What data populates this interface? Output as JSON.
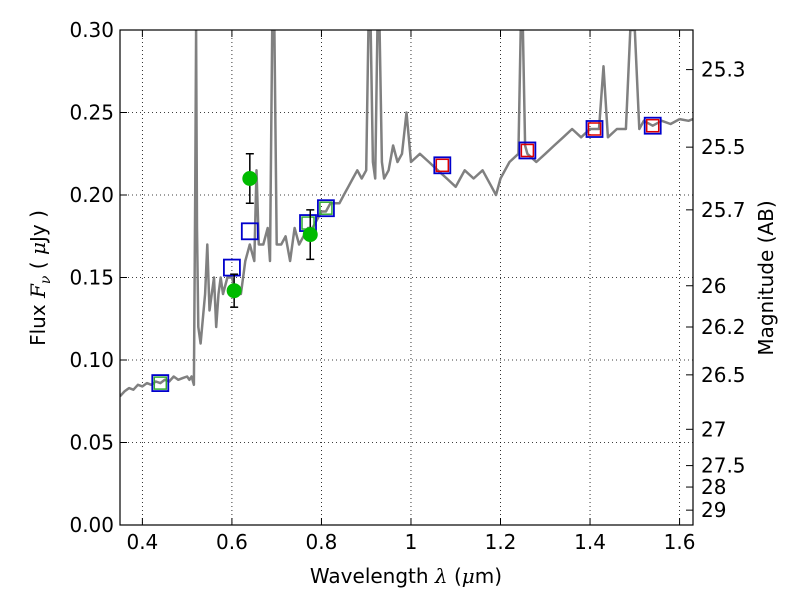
{
  "chart_data": {
    "type": "scatter",
    "xlabel": "Wavelength  λ (μm)",
    "ylabel": "Flux  F_ν  ( μJy )",
    "y2label": "Magnitude (AB)",
    "xlim": [
      0.35,
      1.63
    ],
    "ylim": [
      0.0,
      0.3
    ],
    "grid": "dotted",
    "x_ticks": [
      0.4,
      0.6,
      0.8,
      1.0,
      1.2,
      1.4,
      1.6
    ],
    "x_tick_labels": [
      "0.4",
      "0.6",
      "0.8",
      "1",
      "1.2",
      "1.4",
      "1.6"
    ],
    "y_ticks": [
      0.0,
      0.05,
      0.1,
      0.15,
      0.2,
      0.25,
      0.3
    ],
    "y_tick_labels": [
      "0.00",
      "0.05",
      "0.10",
      "0.15",
      "0.20",
      "0.25",
      "0.30"
    ],
    "mag_ticks": [
      {
        "label": "25.3",
        "flux": 0.276
      },
      {
        "label": "25.5",
        "flux": 0.229
      },
      {
        "label": "25.7",
        "flux": 0.191
      },
      {
        "label": "26",
        "flux": 0.145
      },
      {
        "label": "26.2",
        "flux": 0.12
      },
      {
        "label": "26.5",
        "flux": 0.091
      },
      {
        "label": "27",
        "flux": 0.058
      },
      {
        "label": "27.5",
        "flux": 0.036
      },
      {
        "label": "28",
        "flux": 0.023
      },
      {
        "label": "29",
        "flux": 0.009
      }
    ],
    "colors": {
      "model": "#808080",
      "blue_squares": "#0000cc",
      "green_squares": "#33aa33",
      "red_squares": "#dd0000",
      "points": "#00bb00",
      "errorbars": "#000000"
    },
    "series": [
      {
        "kind": "line",
        "points": [
          [
            0.35,
            0.078
          ],
          [
            0.36,
            0.081
          ],
          [
            0.37,
            0.083
          ],
          [
            0.38,
            0.082
          ],
          [
            0.39,
            0.085
          ],
          [
            0.4,
            0.084
          ],
          [
            0.41,
            0.086
          ],
          [
            0.42,
            0.085
          ],
          [
            0.43,
            0.087
          ],
          [
            0.44,
            0.086
          ],
          [
            0.45,
            0.088
          ],
          [
            0.46,
            0.087
          ],
          [
            0.47,
            0.09
          ],
          [
            0.48,
            0.088
          ],
          [
            0.49,
            0.089
          ],
          [
            0.5,
            0.09
          ],
          [
            0.505,
            0.088
          ],
          [
            0.51,
            0.09
          ],
          [
            0.515,
            0.085
          ],
          [
            0.518,
            0.2
          ],
          [
            0.52,
            0.3
          ],
          [
            0.522,
            0.18
          ],
          [
            0.525,
            0.12
          ],
          [
            0.53,
            0.11
          ],
          [
            0.54,
            0.14
          ],
          [
            0.545,
            0.17
          ],
          [
            0.55,
            0.13
          ],
          [
            0.56,
            0.15
          ],
          [
            0.565,
            0.12
          ],
          [
            0.57,
            0.14
          ],
          [
            0.575,
            0.15
          ],
          [
            0.58,
            0.14
          ],
          [
            0.59,
            0.15
          ],
          [
            0.6,
            0.15
          ],
          [
            0.61,
            0.14
          ],
          [
            0.62,
            0.14
          ],
          [
            0.63,
            0.16
          ],
          [
            0.64,
            0.17
          ],
          [
            0.65,
            0.16
          ],
          [
            0.655,
            0.215
          ],
          [
            0.66,
            0.17
          ],
          [
            0.67,
            0.17
          ],
          [
            0.68,
            0.18
          ],
          [
            0.685,
            0.16
          ],
          [
            0.69,
            0.3
          ],
          [
            0.695,
            0.3
          ],
          [
            0.7,
            0.17
          ],
          [
            0.71,
            0.17
          ],
          [
            0.72,
            0.175
          ],
          [
            0.73,
            0.16
          ],
          [
            0.74,
            0.18
          ],
          [
            0.75,
            0.17
          ],
          [
            0.76,
            0.175
          ],
          [
            0.77,
            0.18
          ],
          [
            0.78,
            0.18
          ],
          [
            0.79,
            0.185
          ],
          [
            0.8,
            0.19
          ],
          [
            0.81,
            0.19
          ],
          [
            0.82,
            0.195
          ],
          [
            0.83,
            0.195
          ],
          [
            0.84,
            0.195
          ],
          [
            0.85,
            0.2
          ],
          [
            0.86,
            0.205
          ],
          [
            0.87,
            0.21
          ],
          [
            0.88,
            0.215
          ],
          [
            0.89,
            0.21
          ],
          [
            0.9,
            0.215
          ],
          [
            0.905,
            0.3
          ],
          [
            0.91,
            0.3
          ],
          [
            0.915,
            0.22
          ],
          [
            0.92,
            0.21
          ],
          [
            0.925,
            0.3
          ],
          [
            0.93,
            0.3
          ],
          [
            0.935,
            0.22
          ],
          [
            0.94,
            0.21
          ],
          [
            0.95,
            0.215
          ],
          [
            0.96,
            0.23
          ],
          [
            0.97,
            0.22
          ],
          [
            0.98,
            0.225
          ],
          [
            0.99,
            0.25
          ],
          [
            1.0,
            0.22
          ],
          [
            1.02,
            0.225
          ],
          [
            1.04,
            0.22
          ],
          [
            1.06,
            0.215
          ],
          [
            1.08,
            0.21
          ],
          [
            1.1,
            0.205
          ],
          [
            1.11,
            0.21
          ],
          [
            1.12,
            0.215
          ],
          [
            1.14,
            0.21
          ],
          [
            1.16,
            0.215
          ],
          [
            1.18,
            0.205
          ],
          [
            1.19,
            0.2
          ],
          [
            1.2,
            0.21
          ],
          [
            1.22,
            0.22
          ],
          [
            1.24,
            0.225
          ],
          [
            1.245,
            0.3
          ],
          [
            1.25,
            0.3
          ],
          [
            1.255,
            0.23
          ],
          [
            1.26,
            0.225
          ],
          [
            1.28,
            0.22
          ],
          [
            1.3,
            0.225
          ],
          [
            1.32,
            0.23
          ],
          [
            1.34,
            0.235
          ],
          [
            1.36,
            0.24
          ],
          [
            1.38,
            0.235
          ],
          [
            1.4,
            0.24
          ],
          [
            1.42,
            0.24
          ],
          [
            1.43,
            0.278
          ],
          [
            1.44,
            0.235
          ],
          [
            1.46,
            0.24
          ],
          [
            1.48,
            0.24
          ],
          [
            1.49,
            0.3
          ],
          [
            1.5,
            0.3
          ],
          [
            1.51,
            0.24
          ],
          [
            1.52,
            0.245
          ],
          [
            1.54,
            0.242
          ],
          [
            1.56,
            0.245
          ],
          [
            1.58,
            0.243
          ],
          [
            1.6,
            0.246
          ],
          [
            1.62,
            0.245
          ],
          [
            1.63,
            0.246
          ]
        ]
      },
      {
        "kind": "squares",
        "points": [
          [
            0.44,
            0.086
          ],
          [
            0.6,
            0.156
          ],
          [
            0.64,
            0.178
          ],
          [
            0.77,
            0.183
          ],
          [
            0.81,
            0.192
          ],
          [
            1.07,
            0.218
          ],
          [
            1.26,
            0.227
          ],
          [
            1.41,
            0.24
          ],
          [
            1.54,
            0.242
          ]
        ]
      },
      {
        "kind": "inner-squares",
        "points": [
          [
            0.44,
            0.086
          ],
          [
            0.77,
            0.183
          ],
          [
            0.81,
            0.192
          ]
        ]
      },
      {
        "kind": "inner-squares",
        "points": [
          [
            1.07,
            0.218
          ],
          [
            1.26,
            0.227
          ],
          [
            1.41,
            0.24
          ],
          [
            1.54,
            0.242
          ]
        ]
      },
      {
        "kind": "points-with-errors",
        "points": [
          {
            "x": 0.605,
            "y": 0.142,
            "err": 0.01
          },
          {
            "x": 0.64,
            "y": 0.21,
            "err": 0.015
          },
          {
            "x": 0.775,
            "y": 0.176,
            "err": 0.015
          }
        ]
      }
    ]
  }
}
